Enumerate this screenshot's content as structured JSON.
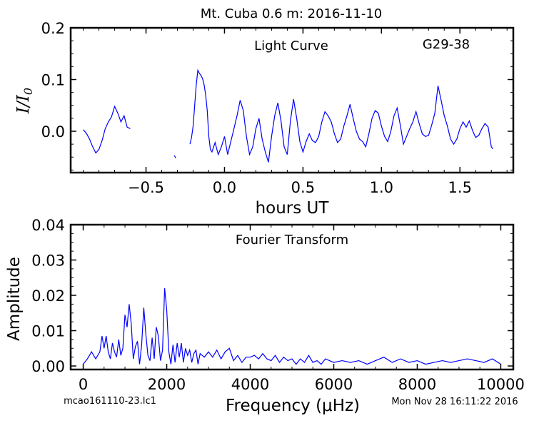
{
  "figure": {
    "title": "Mt. Cuba 0.6 m:  2016-11-10",
    "footer_left": "mcao161110-23.lc1",
    "footer_right": "Mon Nov 28 16:11:22 2016",
    "line_color": "#0000ff"
  },
  "chart_data": [
    {
      "type": "line",
      "panel_label": "Light Curve",
      "annotation": "G29-38",
      "xlabel": "hours UT",
      "ylabel": "I/I0",
      "xlim": [
        -0.98,
        1.84
      ],
      "ylim": [
        -0.08,
        0.2
      ],
      "xticks": [
        -0.5,
        0.0,
        0.5,
        1.0,
        1.5
      ],
      "xtick_labels": [
        "−0.5",
        "0.0",
        "0.5",
        "1.0",
        "1.5"
      ],
      "yticks": [
        0.0,
        0.1,
        0.2
      ],
      "ytick_labels": [
        "0.0",
        "0.1",
        "0.2"
      ],
      "series": [
        {
          "segments": [
            [
              [
                -0.9,
                0.003
              ],
              [
                -0.88,
                -0.004
              ],
              [
                -0.86,
                -0.015
              ],
              [
                -0.84,
                -0.03
              ],
              [
                -0.82,
                -0.042
              ],
              [
                -0.8,
                -0.035
              ],
              [
                -0.78,
                -0.018
              ],
              [
                -0.76,
                0.005
              ],
              [
                -0.74,
                0.018
              ],
              [
                -0.72,
                0.028
              ],
              [
                -0.7,
                0.048
              ],
              [
                -0.68,
                0.035
              ],
              [
                -0.66,
                0.018
              ],
              [
                -0.64,
                0.03
              ],
              [
                -0.62,
                0.008
              ],
              [
                -0.6,
                0.005
              ]
            ],
            [
              [
                -0.32,
                -0.047
              ],
              [
                -0.31,
                -0.052
              ]
            ],
            [
              [
                -0.22,
                -0.025
              ],
              [
                -0.21,
                -0.012
              ],
              [
                -0.2,
                0.01
              ],
              [
                -0.19,
                0.05
              ],
              [
                -0.18,
                0.09
              ],
              [
                -0.17,
                0.118
              ],
              [
                -0.16,
                0.112
              ],
              [
                -0.15,
                0.108
              ],
              [
                -0.14,
                0.102
              ],
              [
                -0.13,
                0.09
              ],
              [
                -0.12,
                0.07
              ],
              [
                -0.11,
                0.04
              ],
              [
                -0.1,
                -0.01
              ],
              [
                -0.09,
                -0.035
              ],
              [
                -0.08,
                -0.04
              ],
              [
                -0.06,
                -0.022
              ],
              [
                -0.04,
                -0.045
              ],
              [
                -0.02,
                -0.03
              ],
              [
                0.0,
                -0.01
              ],
              [
                0.02,
                -0.045
              ],
              [
                0.04,
                -0.02
              ],
              [
                0.06,
                0.005
              ],
              [
                0.08,
                0.03
              ],
              [
                0.1,
                0.06
              ],
              [
                0.12,
                0.04
              ],
              [
                0.14,
                -0.01
              ],
              [
                0.16,
                -0.045
              ],
              [
                0.18,
                -0.03
              ],
              [
                0.2,
                0.005
              ],
              [
                0.22,
                0.025
              ],
              [
                0.24,
                -0.015
              ],
              [
                0.26,
                -0.04
              ],
              [
                0.28,
                -0.06
              ],
              [
                0.3,
                -0.01
              ],
              [
                0.32,
                0.03
              ],
              [
                0.34,
                0.055
              ],
              [
                0.36,
                0.02
              ],
              [
                0.38,
                -0.03
              ],
              [
                0.4,
                -0.045
              ],
              [
                0.42,
                0.02
              ],
              [
                0.44,
                0.062
              ],
              [
                0.46,
                0.025
              ],
              [
                0.48,
                -0.02
              ],
              [
                0.5,
                -0.04
              ],
              [
                0.52,
                -0.02
              ],
              [
                0.54,
                -0.005
              ],
              [
                0.56,
                -0.018
              ],
              [
                0.58,
                -0.022
              ],
              [
                0.6,
                -0.01
              ],
              [
                0.62,
                0.018
              ],
              [
                0.64,
                0.038
              ],
              [
                0.66,
                0.03
              ],
              [
                0.68,
                0.018
              ],
              [
                0.7,
                -0.005
              ],
              [
                0.72,
                -0.022
              ],
              [
                0.74,
                -0.015
              ],
              [
                0.76,
                0.01
              ],
              [
                0.78,
                0.03
              ],
              [
                0.8,
                0.052
              ],
              [
                0.82,
                0.025
              ],
              [
                0.84,
                0.0
              ],
              [
                0.86,
                -0.015
              ],
              [
                0.88,
                -0.02
              ],
              [
                0.9,
                -0.03
              ],
              [
                0.92,
                -0.005
              ],
              [
                0.94,
                0.025
              ],
              [
                0.96,
                0.04
              ],
              [
                0.98,
                0.035
              ],
              [
                1.0,
                0.01
              ],
              [
                1.02,
                -0.01
              ],
              [
                1.04,
                -0.02
              ],
              [
                1.06,
                0.0
              ],
              [
                1.08,
                0.03
              ],
              [
                1.1,
                0.045
              ],
              [
                1.12,
                0.012
              ],
              [
                1.14,
                -0.025
              ],
              [
                1.16,
                -0.01
              ],
              [
                1.18,
                0.005
              ],
              [
                1.2,
                0.018
              ],
              [
                1.22,
                0.038
              ],
              [
                1.24,
                0.015
              ],
              [
                1.26,
                -0.005
              ],
              [
                1.28,
                -0.01
              ],
              [
                1.3,
                -0.008
              ],
              [
                1.32,
                0.012
              ],
              [
                1.34,
                0.035
              ],
              [
                1.36,
                0.088
              ],
              [
                1.38,
                0.06
              ],
              [
                1.4,
                0.03
              ],
              [
                1.42,
                0.01
              ],
              [
                1.44,
                -0.015
              ],
              [
                1.46,
                -0.025
              ],
              [
                1.48,
                -0.015
              ],
              [
                1.5,
                0.005
              ],
              [
                1.52,
                0.018
              ],
              [
                1.54,
                0.008
              ],
              [
                1.56,
                0.02
              ],
              [
                1.58,
                0.002
              ],
              [
                1.6,
                -0.012
              ],
              [
                1.62,
                -0.008
              ],
              [
                1.64,
                0.005
              ],
              [
                1.66,
                0.015
              ],
              [
                1.68,
                0.008
              ],
              [
                1.7,
                -0.03
              ],
              [
                1.71,
                -0.034
              ]
            ]
          ]
        }
      ]
    },
    {
      "type": "line",
      "panel_label": "Fourier Transform",
      "xlabel": "Frequency (μHz)",
      "ylabel": "Amplitude",
      "xlim": [
        -300,
        10300
      ],
      "ylim": [
        -0.001,
        0.04
      ],
      "xticks": [
        0,
        2000,
        4000,
        6000,
        8000,
        10000
      ],
      "xtick_labels": [
        "0",
        "2000",
        "4000",
        "6000",
        "8000",
        "10000"
      ],
      "yticks": [
        0.0,
        0.01,
        0.02,
        0.03,
        0.04
      ],
      "ytick_labels": [
        "0.00",
        "0.01",
        "0.02",
        "0.03",
        "0.04"
      ],
      "series": [
        {
          "x": [
            0,
            100,
            200,
            300,
            400,
            450,
            500,
            550,
            600,
            650,
            700,
            750,
            800,
            850,
            900,
            950,
            1000,
            1050,
            1100,
            1150,
            1200,
            1250,
            1300,
            1350,
            1400,
            1450,
            1500,
            1550,
            1600,
            1650,
            1700,
            1750,
            1800,
            1850,
            1900,
            1950,
            2000,
            2050,
            2100,
            2150,
            2200,
            2250,
            2300,
            2350,
            2400,
            2450,
            2500,
            2550,
            2600,
            2650,
            2700,
            2750,
            2800,
            2900,
            3000,
            3100,
            3200,
            3300,
            3400,
            3500,
            3600,
            3700,
            3800,
            3900,
            4000,
            4100,
            4200,
            4300,
            4400,
            4500,
            4600,
            4700,
            4800,
            4900,
            5000,
            5100,
            5200,
            5300,
            5400,
            5500,
            5600,
            5700,
            5800,
            6000,
            6200,
            6400,
            6600,
            6800,
            7000,
            7200,
            7400,
            7600,
            7800,
            8000,
            8200,
            8400,
            8600,
            8800,
            9000,
            9200,
            9400,
            9600,
            9800,
            10000
          ],
          "values": [
            0.0005,
            0.002,
            0.004,
            0.002,
            0.004,
            0.0085,
            0.005,
            0.0085,
            0.004,
            0.002,
            0.0065,
            0.004,
            0.0025,
            0.0075,
            0.003,
            0.005,
            0.0145,
            0.011,
            0.0175,
            0.012,
            0.002,
            0.0055,
            0.007,
            0.0005,
            0.006,
            0.0165,
            0.009,
            0.003,
            0.0015,
            0.008,
            0.002,
            0.011,
            0.0085,
            0.0015,
            0.0045,
            0.022,
            0.016,
            0.004,
            0.0005,
            0.006,
            0.001,
            0.0065,
            0.0025,
            0.0065,
            0.001,
            0.005,
            0.003,
            0.0045,
            0.001,
            0.0035,
            0.0045,
            0.0005,
            0.0035,
            0.0025,
            0.004,
            0.0025,
            0.0045,
            0.002,
            0.004,
            0.005,
            0.0015,
            0.003,
            0.001,
            0.0025,
            0.0025,
            0.003,
            0.002,
            0.0035,
            0.002,
            0.0015,
            0.003,
            0.001,
            0.0025,
            0.0015,
            0.002,
            0.0005,
            0.002,
            0.001,
            0.003,
            0.001,
            0.0015,
            0.0005,
            0.002,
            0.001,
            0.0015,
            0.001,
            0.0015,
            0.0005,
            0.0015,
            0.0025,
            0.001,
            0.002,
            0.001,
            0.0015,
            0.0005,
            0.001,
            0.0015,
            0.001,
            0.0015,
            0.002,
            0.0015,
            0.001,
            0.002,
            0.0005
          ]
        }
      ]
    }
  ]
}
